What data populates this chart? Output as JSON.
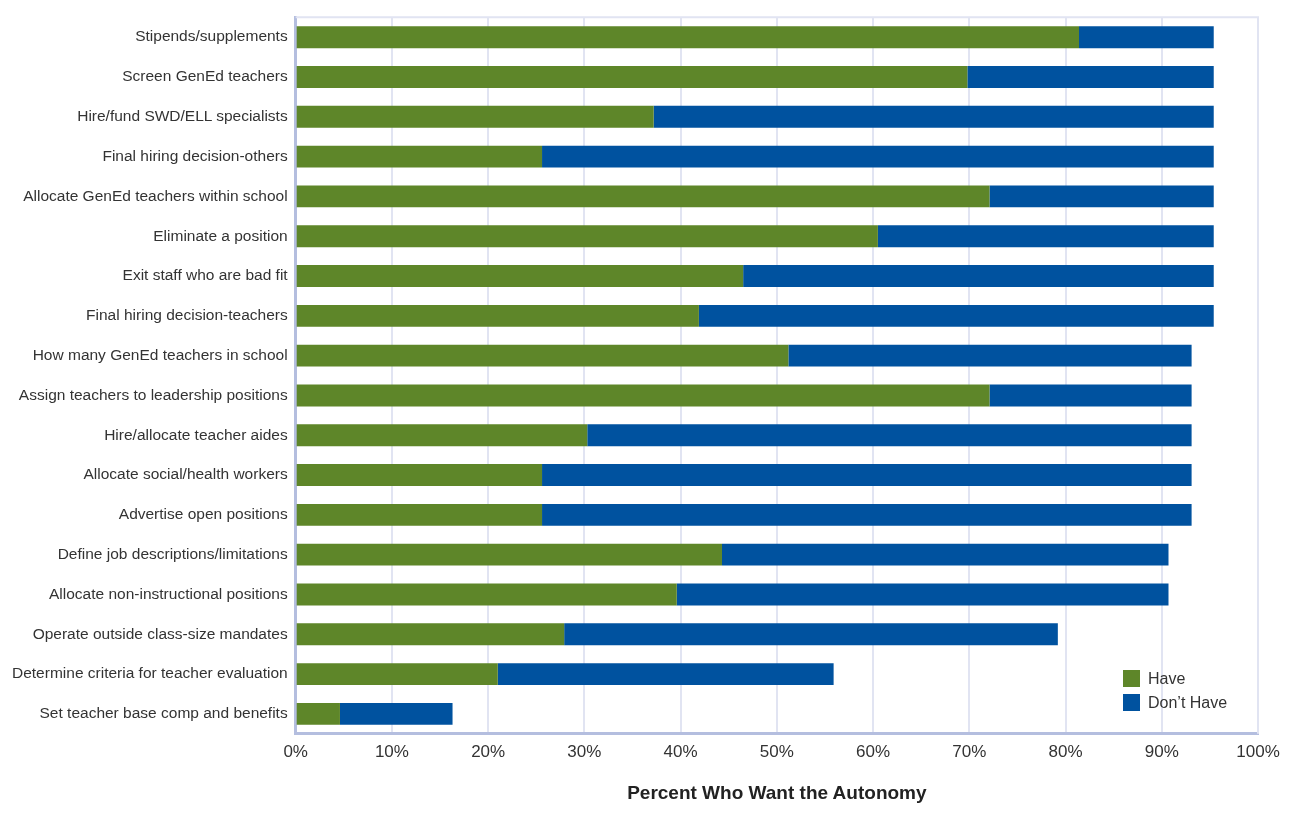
{
  "chart_data": {
    "type": "bar",
    "orientation": "horizontal",
    "stacked": true,
    "xlabel": "Percent Who Want the Autonomy",
    "categories": [
      "Stipends/supplements",
      "Screen GenEd teachers",
      "Hire/fund SWD/ELL specialists",
      "Final hiring decision-others",
      "Allocate GenEd teachers within school",
      "Eliminate a position",
      "Exit staff who are bad fit",
      "Final hiring decision-teachers",
      "How many GenEd teachers in school",
      "Assign teachers to leadership positions",
      "Hire/allocate teacher aides",
      "Allocate social/health workers",
      "Advertise open positions",
      "Define job descriptions/limitations",
      "Allocate non-instructional positions",
      "Operate outside class-size mandates",
      "Determine criteria for teacher evaluation",
      "Set teacher base comp and benefits"
    ],
    "series": [
      {
        "name": "Have",
        "color": "#5e8629",
        "values": [
          81.4,
          69.8,
          37.2,
          25.6,
          72.1,
          60.5,
          46.5,
          41.9,
          51.2,
          72.1,
          30.3,
          25.6,
          25.6,
          44.3,
          39.6,
          27.9,
          21.0,
          4.6
        ]
      },
      {
        "name": "Don’t Have",
        "color": "#00529f",
        "values": [
          14.0,
          25.6,
          58.2,
          69.8,
          23.3,
          34.9,
          48.9,
          53.5,
          41.9,
          21.0,
          62.8,
          67.5,
          67.5,
          46.4,
          51.1,
          51.3,
          34.9,
          11.7
        ]
      }
    ],
    "xlim": [
      0,
      100
    ],
    "xticks": [
      {
        "value": 0,
        "label": "0%"
      },
      {
        "value": 10,
        "label": "10%"
      },
      {
        "value": 20,
        "label": "20%"
      },
      {
        "value": 30,
        "label": "30%"
      },
      {
        "value": 40,
        "label": "40%"
      },
      {
        "value": 50,
        "label": "50%"
      },
      {
        "value": 60,
        "label": "60%"
      },
      {
        "value": 70,
        "label": "70%"
      },
      {
        "value": 80,
        "label": "80%"
      },
      {
        "value": 90,
        "label": "90%"
      },
      {
        "value": 100,
        "label": "100%"
      }
    ],
    "grid": "x",
    "legend": "bottom right"
  }
}
